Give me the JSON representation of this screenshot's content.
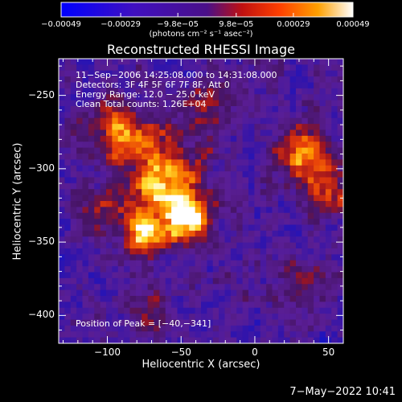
{
  "chart_data": {
    "type": "heatmap",
    "title": "Reconstructed RHESSI Image",
    "xlabel": "Heliocentric X (arcsec)",
    "ylabel": "Heliocentric Y (arcsec)",
    "xlim": [
      -133,
      60
    ],
    "ylim": [
      -419,
      -225
    ],
    "x_ticks": [
      -100,
      -50,
      0,
      50
    ],
    "x_tick_labels": [
      "−100",
      "−50",
      "0",
      "50"
    ],
    "y_ticks": [
      -250,
      -300,
      -350,
      -400
    ],
    "y_tick_labels": [
      "−250",
      "−300",
      "−350",
      "−400"
    ],
    "colorbar": {
      "range": [
        -0.00049,
        0.00049
      ],
      "tick_values": [
        -0.00049,
        -0.00029,
        -9.8e-05,
        9.8e-05,
        0.00029,
        0.00049
      ],
      "tick_labels": [
        "−0.00049",
        "−0.00029",
        "−9.8e−05",
        "9.8e−05",
        "0.00029",
        "0.00049"
      ],
      "unit_label": "(photons cm⁻² s⁻¹ asec⁻²)"
    },
    "annotations": [
      "11−Sep−2006 14:25:08.000 to 14:31:08.000",
      "Detectors: 3F 4F 5F 6F 7F 8F, Att 0",
      "Energy Range: 12.0 − 25.0 keV",
      "Clean     Total counts: 1.26E+04"
    ],
    "peak_label": "Position of Peak = [−40,−341]",
    "peak": [
      -40,
      -341
    ],
    "timestamp": "7−May−2022 10:41",
    "grid": false,
    "colors": {
      "negative": "#2020f0",
      "zero": "#6a1fa0",
      "positive_mid": "#e03010",
      "positive_high": "#ffff40",
      "max": "#ffffff"
    }
  }
}
